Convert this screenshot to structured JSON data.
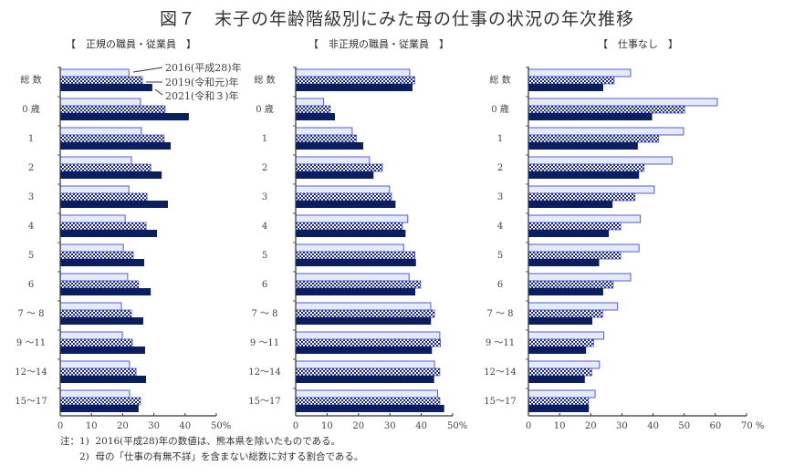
{
  "title": "図７　末子の年齢階級別にみた母の仕事の状況の年次推移",
  "notes": [
    "注：1)  2016(平成28)年の数値は、熊本県を除いたものである。",
    "　　2)  母の「仕事の有無不詳」を含まない総数に対する割合である。"
  ],
  "colors": {
    "s2016_fill": "#e3ebf9",
    "s2016_stroke": "#5a5ad0",
    "s2019_dark": "#1a2a78",
    "s2021_fill": "#0b1f5e"
  },
  "chart_data": [
    {
      "type": "bar",
      "orientation": "horizontal",
      "title": "【　正規の職員・従業員　】",
      "categories": [
        "総 数",
        "0 歳",
        "1",
        "2",
        "3",
        "4",
        "5",
        "6",
        "7 ～ 8",
        "9 ～11",
        "12～14",
        "15～17"
      ],
      "xlim": [
        0,
        50
      ],
      "ticks": [
        "0",
        "10",
        "20",
        "30",
        "40",
        "50%"
      ],
      "series": [
        {
          "name": "2016(平成28)年",
          "values": [
            22.0,
            25.7,
            26.0,
            22.8,
            22.0,
            20.8,
            20.2,
            21.6,
            19.6,
            19.9,
            22.2,
            22.2
          ]
        },
        {
          "name": "2019(令和元)年",
          "values": [
            26.3,
            33.6,
            33.3,
            29.0,
            27.8,
            27.5,
            23.4,
            25.1,
            22.8,
            23.1,
            24.3,
            25.7
          ]
        },
        {
          "name": "2021(令和３)年",
          "values": [
            29.5,
            41.2,
            35.4,
            32.5,
            34.5,
            31.0,
            26.9,
            29.0,
            26.6,
            27.2,
            27.5,
            25.1
          ]
        }
      ]
    },
    {
      "type": "bar",
      "orientation": "horizontal",
      "title": "【　非正規の職員・従業員　】",
      "categories": [
        "総 数",
        "0 歳",
        "1",
        "2",
        "3",
        "4",
        "5",
        "6",
        "7 ～ 8",
        "9 ～11",
        "12～14",
        "15～17"
      ],
      "xlim": [
        0,
        50
      ],
      "ticks": [
        "0",
        "10",
        "20",
        "30",
        "40",
        "50%"
      ],
      "series": [
        {
          "values": [
            36.3,
            8.9,
            18.0,
            23.5,
            29.9,
            35.7,
            34.4,
            36.1,
            43.0,
            45.9,
            44.2,
            45.2
          ]
        },
        {
          "values": [
            37.9,
            11.0,
            19.3,
            27.6,
            30.5,
            34.0,
            38.0,
            39.8,
            44.2,
            46.1,
            45.9,
            45.9
          ]
        },
        {
          "values": [
            37.2,
            12.5,
            21.5,
            24.8,
            31.8,
            35.0,
            38.3,
            38.1,
            43.1,
            43.4,
            44.1,
            47.3
          ]
        }
      ]
    },
    {
      "type": "bar",
      "orientation": "horizontal",
      "title": "【　仕事なし　】",
      "categories": [
        "総 数",
        "0 歳",
        "1",
        "2",
        "3",
        "4",
        "5",
        "6",
        "7 ～ 8",
        "9 ～11",
        "12～14",
        "15～17"
      ],
      "xlim": [
        0,
        70
      ],
      "ticks": [
        "0",
        "10",
        "20",
        "30",
        "40",
        "50",
        "60",
        "70 %"
      ],
      "series": [
        {
          "values": [
            32.8,
            60.6,
            49.8,
            46.1,
            40.4,
            35.9,
            35.5,
            32.8,
            28.6,
            24.2,
            22.8,
            21.4
          ]
        },
        {
          "values": [
            27.5,
            50.1,
            41.8,
            37.1,
            34.2,
            29.6,
            29.6,
            27.2,
            23.8,
            20.9,
            20.3,
            19.3
          ]
        },
        {
          "values": [
            24.0,
            39.7,
            35.1,
            35.5,
            27.0,
            25.8,
            22.7,
            24.0,
            20.5,
            18.5,
            18.1,
            19.4
          ]
        }
      ]
    }
  ]
}
